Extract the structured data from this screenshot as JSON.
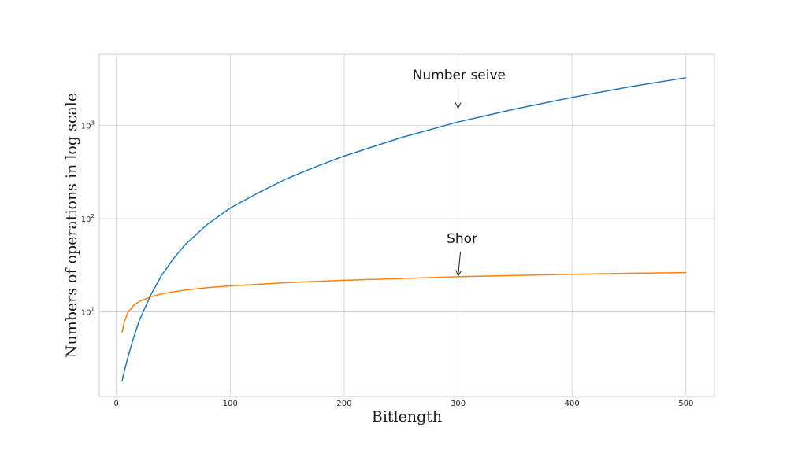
{
  "chart_data": {
    "type": "line",
    "title": "",
    "xlabel": "Bitlength",
    "ylabel": "Numbers of operations in log scale",
    "xlim": [
      -15,
      525
    ],
    "ylim": [
      1.24,
      5800
    ],
    "yscale": "log",
    "grid": true,
    "x_ticks": [
      0,
      100,
      200,
      300,
      400,
      500
    ],
    "y_ticks": [
      {
        "value": 10,
        "base": "10",
        "exp": "1"
      },
      {
        "value": 100,
        "base": "10",
        "exp": "2"
      },
      {
        "value": 1000,
        "base": "10",
        "exp": "3"
      }
    ],
    "series": [
      {
        "color": "#1f77b4",
        "x": [
          5,
          7,
          10,
          15,
          20,
          30,
          40,
          50,
          60,
          80,
          100,
          125,
          150,
          175,
          200,
          250,
          300,
          350,
          400,
          450,
          500
        ],
        "y": [
          1.8,
          2.3,
          3.2,
          5.2,
          8.0,
          15,
          25,
          37,
          52,
          87,
          130,
          190,
          270,
          360,
          470,
          740,
          1090,
          1500,
          2000,
          2590,
          3250
        ]
      },
      {
        "color": "#ff7f0e",
        "x": [
          5,
          7,
          10,
          15,
          20,
          30,
          40,
          50,
          60,
          80,
          100,
          150,
          200,
          250,
          300,
          350,
          400,
          450,
          500
        ],
        "y": [
          6.0,
          7.8,
          9.8,
          11.7,
          12.9,
          14.5,
          15.6,
          16.4,
          17.1,
          18.2,
          19.0,
          20.6,
          21.8,
          22.8,
          23.8,
          24.6,
          25.3,
          25.9,
          26.4
        ]
      }
    ],
    "annotations": [
      {
        "text": "Number seive",
        "x": 300,
        "y": 1500,
        "text_x": 260,
        "text_y": 3100
      },
      {
        "text": "Shor",
        "x": 300,
        "y": 23.8,
        "text_x": 290,
        "text_y": 55
      }
    ]
  }
}
